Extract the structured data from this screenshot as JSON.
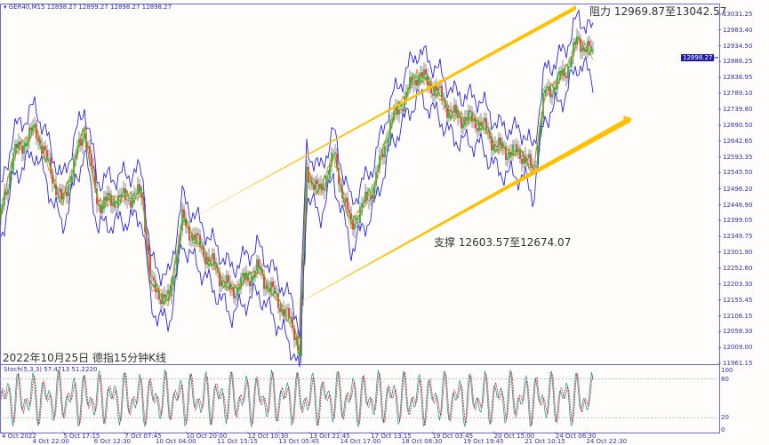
{
  "header": {
    "symbol": "GER40,M15",
    "ohlc": "12898.27 12899.27 12898.27 12898.27"
  },
  "current_price": "12898.27",
  "annotations": {
    "resistance": "阻力 12969.87至13042.57",
    "support": "支撑 12603.57至12674.07",
    "caption": "2022年10月25日 德指15分钟K线"
  },
  "stoch": {
    "label": "Stoch(5,3,3) 57.4713 51.2220",
    "levels": [
      "100",
      "80",
      "20",
      "0"
    ]
  },
  "colors": {
    "axis": "#6a6adf",
    "band": "#2a2ae0",
    "trend": "#ffc000",
    "bull": "#2a9a2a",
    "bear": "#e02020",
    "ma": "#20c020"
  },
  "chart_data": {
    "type": "candlestick",
    "symbol": "GER40",
    "timeframe": "M15",
    "ylim": [
      11961.15,
      13031.25
    ],
    "y_ticks": [
      "13031.25",
      "12983.40",
      "12934.50",
      "12886.25",
      "12836.95",
      "12789.10",
      "12739.80",
      "12690.50",
      "12642.65",
      "12593.35",
      "12545.50",
      "12496.20",
      "12446.90",
      "12399.05",
      "12349.75",
      "12301.90",
      "12252.60",
      "12203.30",
      "12155.45",
      "12106.15",
      "12058.30",
      "12009.00",
      "11961.15"
    ],
    "x_ticks": [
      "4 Oct 2022",
      "4 Oct 22:00",
      "5 Oct 17:15",
      "6 Oct 12:30",
      "7 Oct 07:45",
      "10 Oct 04:00",
      "10 Oct 20:00",
      "11 Oct 15:15",
      "12 Oct 10:30",
      "13 Oct 05:45",
      "13 Oct 21:45",
      "14 Oct 17:00",
      "17 Oct 13:15",
      "18 Oct 08:30",
      "19 Oct 03:45",
      "19 Oct 19:45",
      "20 Oct 15:00",
      "21 Oct 10:15",
      "24 Oct 06:30",
      "24 Oct 22:30"
    ],
    "approx_close_at_ticks": [
      12400,
      12650,
      12600,
      12680,
      12500,
      12200,
      12380,
      12250,
      12200,
      12150,
      12450,
      12400,
      12650,
      12850,
      12750,
      12680,
      12640,
      12580,
      12850,
      12898
    ]
  }
}
